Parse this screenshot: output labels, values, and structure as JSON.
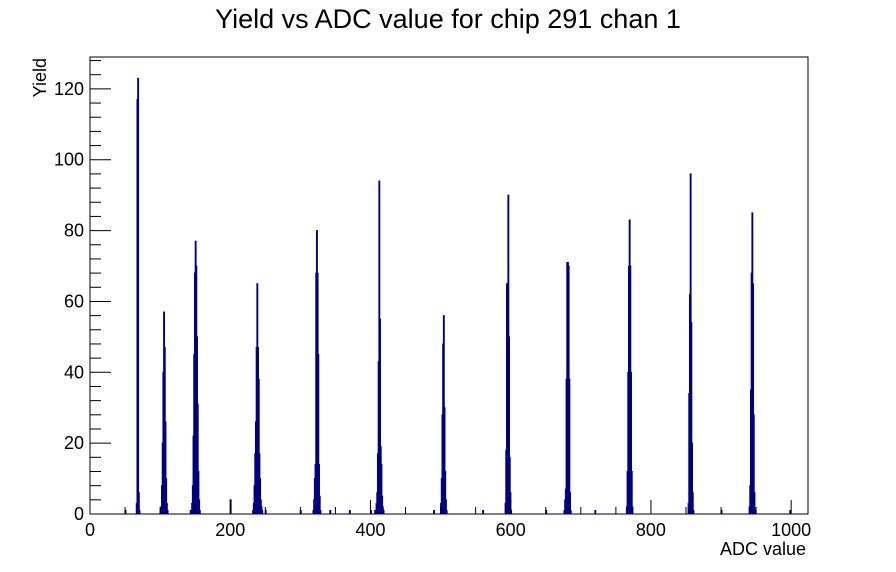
{
  "chart_data": {
    "type": "bar",
    "title": "Yield vs ADC value for chip 291 chan 1",
    "xlabel": "ADC value",
    "ylabel": "Yield",
    "xlim": [
      0,
      1024
    ],
    "ylim": [
      0,
      129
    ],
    "x_ticks": [
      0,
      200,
      400,
      600,
      800,
      1000
    ],
    "y_ticks": [
      0,
      20,
      40,
      60,
      80,
      100,
      120
    ],
    "grid": false,
    "legend": "none",
    "series_color": "#000080",
    "series": [
      {
        "values": [
          [
            50,
            1
          ],
          [
            66,
            3
          ],
          [
            67,
            117
          ],
          [
            68,
            123
          ],
          [
            69,
            6
          ],
          [
            70,
            1
          ],
          [
            100,
            1
          ],
          [
            101,
            2
          ],
          [
            102,
            8
          ],
          [
            103,
            20
          ],
          [
            104,
            40
          ],
          [
            105,
            57
          ],
          [
            106,
            47
          ],
          [
            107,
            26
          ],
          [
            108,
            10
          ],
          [
            109,
            3
          ],
          [
            110,
            1
          ],
          [
            143,
            1
          ],
          [
            145,
            3
          ],
          [
            146,
            8
          ],
          [
            147,
            22
          ],
          [
            148,
            45
          ],
          [
            149,
            68
          ],
          [
            150,
            77
          ],
          [
            151,
            70
          ],
          [
            152,
            50
          ],
          [
            153,
            31
          ],
          [
            154,
            12
          ],
          [
            155,
            4
          ],
          [
            156,
            1
          ],
          [
            200,
            4
          ],
          [
            232,
            1
          ],
          [
            233,
            3
          ],
          [
            234,
            8
          ],
          [
            235,
            17
          ],
          [
            236,
            26
          ],
          [
            237,
            47
          ],
          [
            238,
            65
          ],
          [
            239,
            47
          ],
          [
            240,
            38
          ],
          [
            241,
            17
          ],
          [
            242,
            10
          ],
          [
            243,
            4
          ],
          [
            244,
            2
          ],
          [
            245,
            1
          ],
          [
            250,
            1
          ],
          [
            300,
            1
          ],
          [
            318,
            1
          ],
          [
            319,
            4
          ],
          [
            320,
            10
          ],
          [
            321,
            14
          ],
          [
            322,
            68
          ],
          [
            323,
            80
          ],
          [
            324,
            68
          ],
          [
            325,
            45
          ],
          [
            326,
            14
          ],
          [
            327,
            5
          ],
          [
            328,
            1
          ],
          [
            342,
            1
          ],
          [
            370,
            1
          ],
          [
            400,
            1
          ],
          [
            406,
            1
          ],
          [
            408,
            3
          ],
          [
            409,
            6
          ],
          [
            410,
            17
          ],
          [
            411,
            43
          ],
          [
            412,
            94
          ],
          [
            413,
            55
          ],
          [
            414,
            19
          ],
          [
            415,
            14
          ],
          [
            416,
            5
          ],
          [
            417,
            2
          ],
          [
            418,
            1
          ],
          [
            490,
            1
          ],
          [
            500,
            3
          ],
          [
            501,
            10
          ],
          [
            502,
            28
          ],
          [
            503,
            48
          ],
          [
            504,
            56
          ],
          [
            505,
            30
          ],
          [
            506,
            12
          ],
          [
            507,
            4
          ],
          [
            508,
            1
          ],
          [
            560,
            1
          ],
          [
            592,
            3
          ],
          [
            593,
            18
          ],
          [
            594,
            65
          ],
          [
            595,
            63
          ],
          [
            596,
            90
          ],
          [
            597,
            50
          ],
          [
            598,
            16
          ],
          [
            599,
            6
          ],
          [
            600,
            1
          ],
          [
            650,
            1
          ],
          [
            676,
            1
          ],
          [
            677,
            4
          ],
          [
            678,
            7
          ],
          [
            679,
            38
          ],
          [
            680,
            71
          ],
          [
            681,
            71
          ],
          [
            682,
            70
          ],
          [
            683,
            38
          ],
          [
            684,
            6
          ],
          [
            685,
            1
          ],
          [
            720,
            1
          ],
          [
            765,
            2
          ],
          [
            766,
            12
          ],
          [
            767,
            40
          ],
          [
            768,
            70
          ],
          [
            769,
            83
          ],
          [
            770,
            70
          ],
          [
            771,
            40
          ],
          [
            772,
            12
          ],
          [
            773,
            2
          ],
          [
            853,
            3
          ],
          [
            854,
            34
          ],
          [
            855,
            62
          ],
          [
            856,
            96
          ],
          [
            857,
            54
          ],
          [
            858,
            20
          ],
          [
            859,
            6
          ],
          [
            860,
            1
          ],
          [
            900,
            1
          ],
          [
            940,
            2
          ],
          [
            941,
            8
          ],
          [
            942,
            35
          ],
          [
            943,
            68
          ],
          [
            944,
            85
          ],
          [
            945,
            65
          ],
          [
            946,
            28
          ],
          [
            947,
            6
          ],
          [
            948,
            1
          ],
          [
            998,
            1
          ]
        ]
      }
    ]
  }
}
